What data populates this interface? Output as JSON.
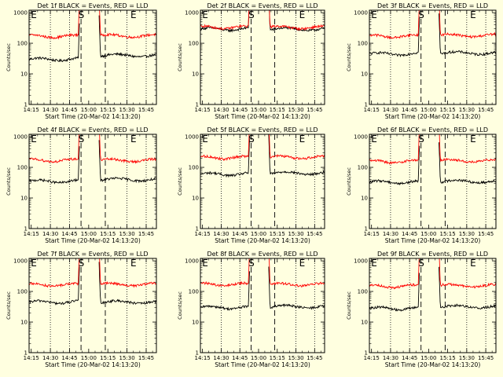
{
  "figure": {
    "xlabel": "Start Time (20-Mar-02 14:13:20)",
    "ylabel": "Counts/sec",
    "x_tick_labels": [
      "14:15",
      "14:30",
      "14:45",
      "15:00",
      "15:15",
      "15:30",
      "15:45"
    ],
    "y_tick_labels": [
      "1",
      "10",
      "100",
      "1000"
    ],
    "markers": {
      "S": "S",
      "E": "E"
    },
    "colors": {
      "background": "#ffffe0",
      "events": "#000000",
      "lld": "#ff0000"
    }
  },
  "chart_data": [
    {
      "type": "line",
      "title": "Det 1f BLACK = Events, RED = LLD",
      "xlim": [
        "14:13:20",
        "15:53"
      ],
      "ylim": [
        1,
        1200
      ],
      "y_scale": "log",
      "series": [
        {
          "name": "Events",
          "color": "#000000",
          "pre": 30,
          "post": 40
        },
        {
          "name": "LLD",
          "color": "#ff0000",
          "pre": 170,
          "post": 175
        }
      ],
      "events": {
        "saa_start": "14:53",
        "saa_end": "15:08",
        "vlines_dotted": [
          "14:30",
          "14:45",
          "15:30",
          "15:45"
        ],
        "vlines_dashed": [
          "14:54",
          "15:13"
        ]
      }
    },
    {
      "type": "line",
      "title": "Det 2f BLACK = Events, RED = LLD",
      "xlim": [
        "14:13:20",
        "15:53"
      ],
      "ylim": [
        1,
        1200
      ],
      "y_scale": "log",
      "series": [
        {
          "name": "Events",
          "color": "#000000",
          "pre": 290,
          "post": 290
        },
        {
          "name": "LLD",
          "color": "#ff0000",
          "pre": 330,
          "post": 330
        }
      ],
      "events": {
        "saa_start": "14:53",
        "saa_end": "15:08",
        "vlines_dotted": [
          "14:30",
          "14:45",
          "15:30",
          "15:45"
        ],
        "vlines_dashed": [
          "14:54",
          "15:13"
        ]
      }
    },
    {
      "type": "line",
      "title": "Det 3f BLACK = Events, RED = LLD",
      "xlim": [
        "14:13:20",
        "15:53"
      ],
      "ylim": [
        1,
        1200
      ],
      "y_scale": "log",
      "series": [
        {
          "name": "Events",
          "color": "#000000",
          "pre": 45,
          "post": 48
        },
        {
          "name": "LLD",
          "color": "#ff0000",
          "pre": 170,
          "post": 180
        }
      ],
      "events": {
        "saa_start": "14:53",
        "saa_end": "15:08",
        "vlines_dotted": [
          "14:30",
          "14:45",
          "15:30",
          "15:45"
        ],
        "vlines_dashed": [
          "14:54",
          "15:13"
        ]
      }
    },
    {
      "type": "line",
      "title": "Det 4f BLACK = Events, RED = LLD",
      "xlim": [
        "14:13:20",
        "15:53"
      ],
      "ylim": [
        1,
        1200
      ],
      "y_scale": "log",
      "series": [
        {
          "name": "Events",
          "color": "#000000",
          "pre": 35,
          "post": 40
        },
        {
          "name": "LLD",
          "color": "#ff0000",
          "pre": 170,
          "post": 170
        }
      ],
      "events": {
        "saa_start": "14:53",
        "saa_end": "15:08",
        "vlines_dotted": [
          "14:30",
          "14:45",
          "15:30",
          "15:45"
        ],
        "vlines_dashed": [
          "14:54",
          "15:13"
        ]
      }
    },
    {
      "type": "line",
      "title": "Det 5f BLACK = Events, RED = LLD",
      "xlim": [
        "14:13:20",
        "15:53"
      ],
      "ylim": [
        1,
        1200
      ],
      "y_scale": "log",
      "series": [
        {
          "name": "Events",
          "color": "#000000",
          "pre": 60,
          "post": 65
        },
        {
          "name": "LLD",
          "color": "#ff0000",
          "pre": 210,
          "post": 215
        }
      ],
      "events": {
        "saa_start": "14:53",
        "saa_end": "15:08",
        "vlines_dotted": [
          "14:30",
          "14:45",
          "15:30",
          "15:45"
        ],
        "vlines_dashed": [
          "14:54",
          "15:13"
        ]
      }
    },
    {
      "type": "line",
      "title": "Det 6f BLACK = Events, RED = LLD",
      "xlim": [
        "14:13:20",
        "15:53"
      ],
      "ylim": [
        1,
        1200
      ],
      "y_scale": "log",
      "series": [
        {
          "name": "Events",
          "color": "#000000",
          "pre": 33,
          "post": 35
        },
        {
          "name": "LLD",
          "color": "#ff0000",
          "pre": 155,
          "post": 165
        }
      ],
      "events": {
        "saa_start": "14:53",
        "saa_end": "15:08",
        "vlines_dotted": [
          "14:30",
          "14:45",
          "15:30",
          "15:45"
        ],
        "vlines_dashed": [
          "14:54",
          "15:13"
        ]
      }
    },
    {
      "type": "line",
      "title": "Det 7f BLACK = Events, RED = LLD",
      "xlim": [
        "14:13:20",
        "15:53"
      ],
      "ylim": [
        1,
        1200
      ],
      "y_scale": "log",
      "series": [
        {
          "name": "Events",
          "color": "#000000",
          "pre": 45,
          "post": 45
        },
        {
          "name": "LLD",
          "color": "#ff0000",
          "pre": 165,
          "post": 170
        }
      ],
      "events": {
        "saa_start": "14:53",
        "saa_end": "15:08",
        "vlines_dotted": [
          "14:30",
          "14:45",
          "15:30",
          "15:45"
        ],
        "vlines_dashed": [
          "14:54",
          "15:13"
        ]
      }
    },
    {
      "type": "line",
      "title": "Det 8f BLACK = Events, RED = LLD",
      "xlim": [
        "14:13:20",
        "15:53"
      ],
      "ylim": [
        1,
        1200
      ],
      "y_scale": "log",
      "series": [
        {
          "name": "Events",
          "color": "#000000",
          "pre": 30,
          "post": 32
        },
        {
          "name": "LLD",
          "color": "#ff0000",
          "pre": 170,
          "post": 170
        }
      ],
      "events": {
        "saa_start": "14:53",
        "saa_end": "15:08",
        "vlines_dotted": [
          "14:30",
          "14:45",
          "15:30",
          "15:45"
        ],
        "vlines_dashed": [
          "14:54",
          "15:13"
        ]
      }
    },
    {
      "type": "line",
      "title": "Det 9f BLACK = Events, RED = LLD",
      "xlim": [
        "14:13:20",
        "15:53"
      ],
      "ylim": [
        1,
        1200
      ],
      "y_scale": "log",
      "series": [
        {
          "name": "Events",
          "color": "#000000",
          "pre": 28,
          "post": 32
        },
        {
          "name": "LLD",
          "color": "#ff0000",
          "pre": 150,
          "post": 155
        }
      ],
      "events": {
        "saa_start": "14:53",
        "saa_end": "15:08",
        "vlines_dotted": [
          "14:30",
          "14:45",
          "15:30",
          "15:45"
        ],
        "vlines_dashed": [
          "14:54",
          "15:13"
        ]
      }
    }
  ]
}
